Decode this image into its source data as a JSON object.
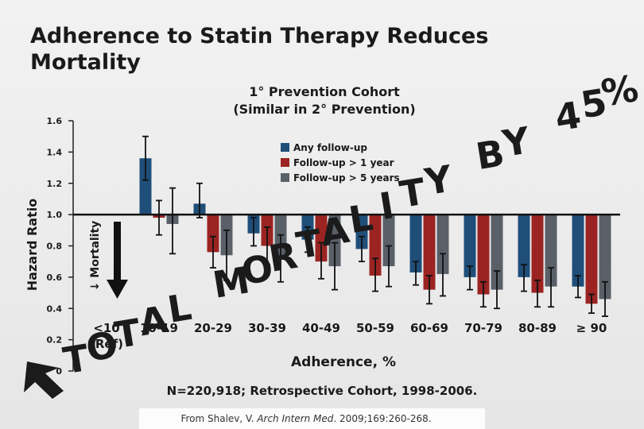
{
  "page": {
    "title_line1": "Adherence to Statin Therapy Reduces",
    "title_line2": "Mortality",
    "subtitle_line1": "1° Prevention Cohort",
    "subtitle_line2": "(Similar in 2° Prevention)",
    "footnote": "N=220,918; Retrospective Cohort, 1998-2006.",
    "citation_prefix": "From Shalev, V. ",
    "citation_journal": "Arch Intern Med",
    "citation_suffix": ". 2009;169:260-268.",
    "mortality_axis_label": "↓ Mortality",
    "overlay_text": "TOTAL MORTALITY BY 45%",
    "colors": {
      "any_followup": "#1f4e79",
      "followup_1yr": "#9b2423",
      "followup_5yr": "#5a6068",
      "overlay": "#1b1b1b"
    }
  },
  "chart_data": {
    "type": "bar",
    "ylabel": "Hazard Ratio",
    "xlabel": "Adherence, %",
    "ylim": [
      0,
      1.6
    ],
    "yticks": [
      "0",
      "0.2",
      "0.4",
      "0.6",
      "0.8",
      "1.0",
      "1.2",
      "1.4",
      "1.6"
    ],
    "reference_line": 1.0,
    "categories": [
      "<10 (Ref)",
      "10-19",
      "20-29",
      "30-39",
      "40-49",
      "50-59",
      "60-69",
      "70-79",
      "80-89",
      "≥ 90"
    ],
    "series": [
      {
        "name": "Any follow-up",
        "values": [
          null,
          1.36,
          1.07,
          0.88,
          0.84,
          0.78,
          0.63,
          0.6,
          0.6,
          0.54
        ],
        "error_low": [
          null,
          1.22,
          0.98,
          0.8,
          0.76,
          0.7,
          0.55,
          0.52,
          0.51,
          0.47
        ],
        "error_high": [
          null,
          1.5,
          1.2,
          0.98,
          0.92,
          0.86,
          0.7,
          0.67,
          0.68,
          0.61
        ]
      },
      {
        "name": "Follow-up > 1 year",
        "values": [
          null,
          0.98,
          0.76,
          0.8,
          0.7,
          0.61,
          0.52,
          0.49,
          0.5,
          0.43
        ],
        "error_low": [
          null,
          0.87,
          0.66,
          0.68,
          0.59,
          0.51,
          0.43,
          0.41,
          0.41,
          0.37
        ],
        "error_high": [
          null,
          1.09,
          0.86,
          0.92,
          0.82,
          0.72,
          0.61,
          0.57,
          0.58,
          0.49
        ]
      },
      {
        "name": "Follow-up > 5 years",
        "values": [
          null,
          0.94,
          0.74,
          0.72,
          0.67,
          0.67,
          0.62,
          0.52,
          0.54,
          0.46
        ],
        "error_low": [
          null,
          0.75,
          0.58,
          0.57,
          0.52,
          0.54,
          0.48,
          0.4,
          0.41,
          0.35
        ],
        "error_high": [
          null,
          1.17,
          0.9,
          0.87,
          0.82,
          0.8,
          0.75,
          0.64,
          0.66,
          0.57
        ]
      }
    ]
  }
}
